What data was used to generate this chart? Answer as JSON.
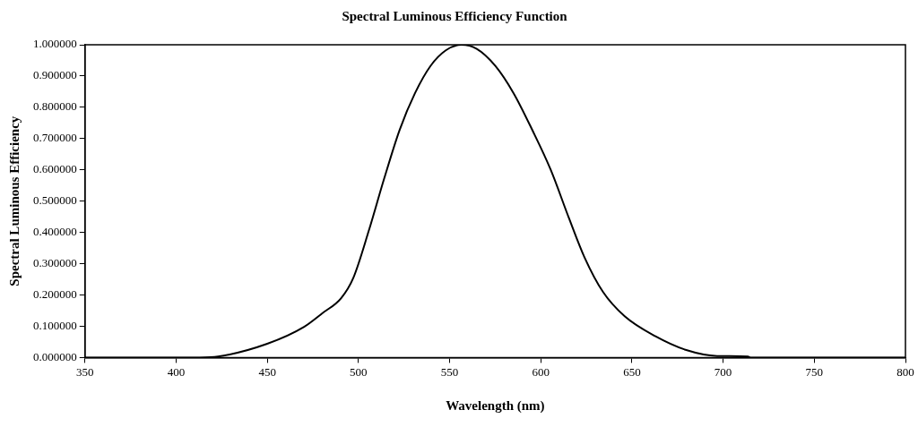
{
  "chart_data": {
    "type": "line",
    "title": "Spectral Luminous Efficiency Function",
    "xlabel": "Wavelength (nm)",
    "ylabel": "Spectral Luminous Efficiency",
    "xlim": [
      350,
      800
    ],
    "xticks": [
      350,
      400,
      450,
      500,
      550,
      600,
      650,
      700,
      750,
      800
    ],
    "ylim": [
      0,
      1
    ],
    "yticks": [
      {
        "value": 0,
        "label": "0.000000"
      },
      {
        "value": 0.1,
        "label": "0.100000"
      },
      {
        "value": 0.2,
        "label": "0.200000"
      },
      {
        "value": 0.3,
        "label": "0.300000"
      },
      {
        "value": 0.4,
        "label": "0.400000"
      },
      {
        "value": 0.5,
        "label": "0.500000"
      },
      {
        "value": 0.6,
        "label": "0.600000"
      },
      {
        "value": 0.7,
        "label": "0.700000"
      },
      {
        "value": 0.8,
        "label": "0.800000"
      },
      {
        "value": 0.9,
        "label": "0.900000"
      },
      {
        "value": 1,
        "label": "1.000000"
      }
    ],
    "grid": false,
    "legend": false,
    "marker": "none",
    "line_style": "solid",
    "series": [
      {
        "color": "#000000",
        "x": [
          350,
          413,
          423,
          450,
          470.2,
          480.3,
          490.5,
          497.2,
          505.7,
          514.1,
          522.6,
          531,
          539.5,
          547.9,
          556.4,
          564.9,
          575,
          585.1,
          595.3,
          605.4,
          615.5,
          624,
          634.1,
          646,
          662.9,
          679.8,
          696.7,
          713.6,
          715,
          800
        ],
        "values": [
          0,
          0,
          0.003,
          0.044,
          0.098,
          0.142,
          0.19,
          0.255,
          0.406,
          0.572,
          0.728,
          0.845,
          0.932,
          0.982,
          1,
          0.987,
          0.933,
          0.845,
          0.728,
          0.601,
          0.445,
          0.32,
          0.21,
          0.132,
          0.068,
          0.024,
          0.005,
          0.003,
          0,
          0
        ]
      }
    ]
  }
}
